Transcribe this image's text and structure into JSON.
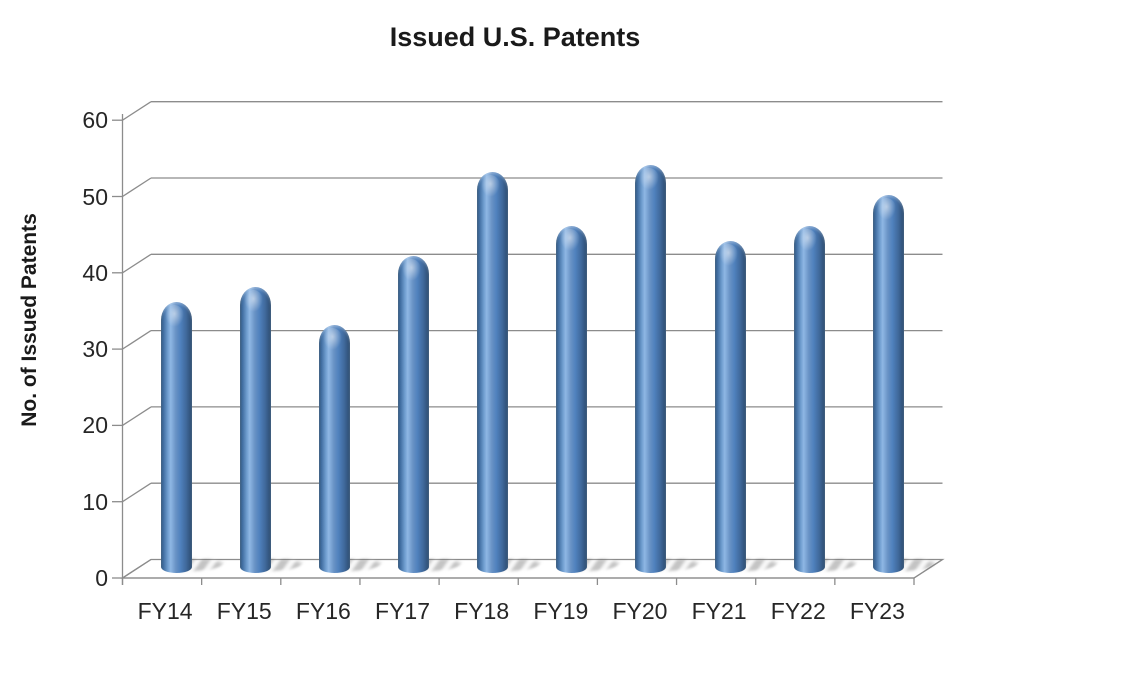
{
  "chart_data": {
    "type": "bar",
    "subtype": "3d-cylinder-column",
    "title": "Issued U.S. Patents",
    "xlabel": "",
    "ylabel": "No. of Issued Patents",
    "categories": [
      "FY14",
      "FY15",
      "FY16",
      "FY17",
      "FY18",
      "FY19",
      "FY20",
      "FY21",
      "FY22",
      "FY23"
    ],
    "values": [
      35,
      37,
      32,
      41,
      52,
      45,
      53,
      43,
      45,
      49
    ],
    "yticks": [
      0,
      10,
      20,
      30,
      40,
      50,
      60
    ],
    "ylim": [
      0,
      60
    ],
    "grid": true,
    "legend": false,
    "colors": {
      "bar_main": "#4f81bd",
      "bar_light": "#8fb7e4",
      "bar_dark": "#2e5174",
      "gridline": "#8c8c8c",
      "axis": "#8c8c8c",
      "text": "#262626",
      "background": "#ffffff"
    }
  }
}
